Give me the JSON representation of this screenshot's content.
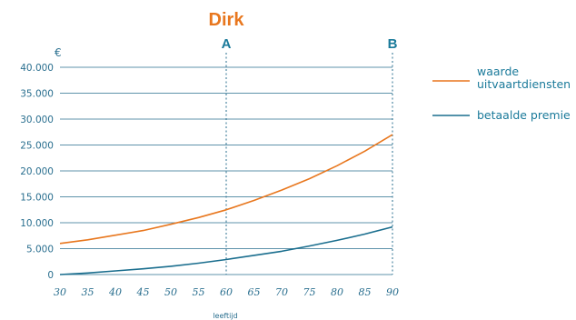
{
  "chart_data": {
    "type": "line",
    "title": "Dirk",
    "ylabel": "€",
    "xlabel": "leeftijd",
    "xlim": [
      30,
      90
    ],
    "ylim": [
      0,
      40000
    ],
    "x_ticks": [
      "30",
      "35",
      "40",
      "45",
      "50",
      "55",
      "60",
      "65",
      "70",
      "75",
      "80",
      "85",
      "90"
    ],
    "y_ticks": [
      "0",
      "5.000",
      "10.000",
      "15.000",
      "20.000",
      "25.000",
      "30.000",
      "35.000",
      "40.000"
    ],
    "y_tick_values": [
      0,
      5000,
      10000,
      15000,
      20000,
      25000,
      30000,
      35000,
      40000
    ],
    "grid": "horizontal",
    "legend_position": "right",
    "markers": [
      {
        "label": "A",
        "x": 60
      },
      {
        "label": "B",
        "x": 90
      }
    ],
    "x": [
      30,
      35,
      40,
      45,
      50,
      55,
      60,
      65,
      70,
      75,
      80,
      85,
      90
    ],
    "series": [
      {
        "name_lines": [
          "waarde",
          "uitvaartdiensten"
        ],
        "color": "#e8771e",
        "values": [
          6000,
          6700,
          7600,
          8500,
          9700,
          11000,
          12500,
          14300,
          16300,
          18500,
          21000,
          23800,
          27000
        ]
      },
      {
        "name_lines": [
          "betaalde premie"
        ],
        "color": "#1a6e8e",
        "values": [
          0,
          300,
          700,
          1100,
          1600,
          2200,
          2900,
          3700,
          4500,
          5500,
          6600,
          7800,
          9200
        ]
      }
    ]
  }
}
